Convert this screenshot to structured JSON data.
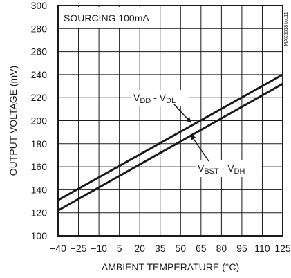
{
  "chart_data": {
    "type": "line",
    "inset_label": "SOURCING 100mA",
    "watermark": "MAX5018 toc11",
    "xlabel": "AMBIENT TEMPERATURE (°C)",
    "ylabel": "OUTPUT VOLTAGE (mV)",
    "xlim": [
      -40,
      125
    ],
    "ylim": [
      100,
      300
    ],
    "x_ticks": [
      -40,
      -25,
      -10,
      5,
      20,
      35,
      50,
      65,
      80,
      95,
      110,
      125
    ],
    "y_ticks": [
      100,
      120,
      140,
      160,
      180,
      200,
      220,
      240,
      260,
      280,
      300
    ],
    "grid": true,
    "series": [
      {
        "name": "VDD - VDL",
        "name_parts": [
          {
            "t": "V",
            "sub": false
          },
          {
            "t": "DD",
            "sub": true
          },
          {
            "t": " - V",
            "sub": false
          },
          {
            "t": "DL",
            "sub": true
          }
        ],
        "x": [
          -40,
          125
        ],
        "y": [
          131,
          240
        ]
      },
      {
        "name": "VBST - VDH",
        "name_parts": [
          {
            "t": "V",
            "sub": false
          },
          {
            "t": "BST",
            "sub": true
          },
          {
            "t": " - V",
            "sub": false
          },
          {
            "t": "DH",
            "sub": true
          }
        ],
        "x": [
          -40,
          125
        ],
        "y": [
          122,
          232
        ]
      }
    ],
    "colors": {
      "line": "#1a1a1a",
      "grid": "#1a1a1a",
      "background": "#ffffff"
    }
  }
}
